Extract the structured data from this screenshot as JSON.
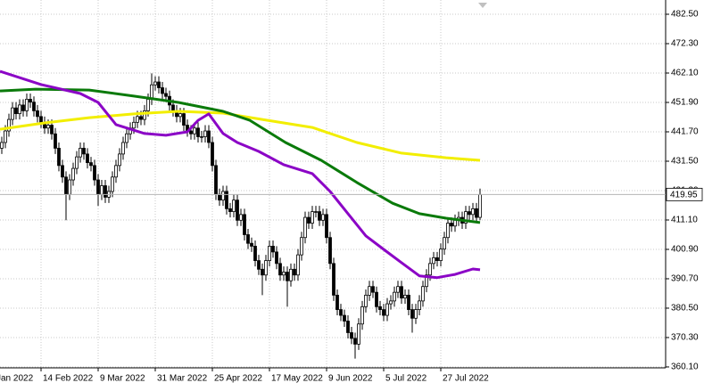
{
  "chart_data": {
    "type": "candlestick",
    "up_color": "#ffffff",
    "down_color": "#000000",
    "outline_color": "#000000",
    "open": [
      436,
      438,
      442,
      446,
      450,
      448,
      451,
      449,
      453,
      452,
      449,
      447,
      445,
      443,
      444,
      441,
      436,
      430,
      426,
      420,
      425,
      429,
      433,
      436,
      434,
      431,
      430,
      425,
      420,
      423,
      419,
      421,
      426,
      430,
      434,
      438,
      441,
      443,
      445,
      447,
      446,
      449,
      453,
      458,
      459,
      457,
      455,
      454,
      451,
      449,
      447,
      448,
      444,
      442,
      441,
      443,
      440,
      440,
      442,
      438,
      430,
      420,
      418,
      421,
      415,
      414,
      418,
      411,
      413,
      406,
      403,
      402,
      397,
      394,
      392,
      397,
      402,
      400,
      396,
      392,
      393,
      390,
      394,
      392,
      399,
      405,
      412,
      410,
      414,
      414,
      411,
      413,
      405,
      396,
      385,
      380,
      378,
      376,
      372,
      370,
      368,
      375,
      381,
      385,
      388,
      386,
      381,
      380,
      378,
      382,
      383,
      386,
      388,
      384,
      385,
      380,
      377,
      380,
      383,
      388,
      392,
      396,
      398,
      397,
      401,
      405,
      410,
      409,
      411,
      412,
      410,
      414,
      413,
      415,
      412
    ],
    "high": [
      440,
      444,
      448,
      452,
      452,
      453,
      453,
      455,
      455,
      454,
      451,
      449,
      447,
      446,
      446,
      443,
      438,
      432,
      428,
      427,
      431,
      435,
      438,
      438,
      436,
      433,
      432,
      427,
      425,
      425,
      423,
      428,
      432,
      436,
      440,
      443,
      445,
      447,
      449,
      449,
      451,
      455,
      462,
      461,
      461,
      459,
      457,
      456,
      453,
      451,
      450,
      450,
      446,
      444,
      445,
      445,
      442,
      444,
      444,
      440,
      432,
      422,
      423,
      423,
      417,
      420,
      420,
      415,
      415,
      408,
      405,
      404,
      399,
      396,
      399,
      404,
      404,
      402,
      398,
      395,
      395,
      396,
      396,
      401,
      407,
      414,
      414,
      416,
      416,
      416,
      415,
      415,
      407,
      398,
      387,
      382,
      380,
      378,
      374,
      372,
      377,
      383,
      387,
      390,
      390,
      388,
      383,
      382,
      384,
      385,
      388,
      390,
      390,
      387,
      387,
      382,
      382,
      385,
      390,
      394,
      398,
      400,
      400,
      403,
      407,
      412,
      412,
      413,
      414,
      414,
      416,
      416,
      417,
      417,
      422
    ],
    "low": [
      434,
      436,
      440,
      444,
      446,
      446,
      447,
      447,
      450,
      447,
      445,
      443,
      441,
      441,
      439,
      434,
      428,
      424,
      411,
      418,
      423,
      427,
      431,
      432,
      429,
      428,
      423,
      416,
      418,
      417,
      417,
      419,
      424,
      428,
      432,
      436,
      439,
      441,
      443,
      444,
      444,
      447,
      451,
      456,
      455,
      453,
      452,
      449,
      447,
      445,
      445,
      442,
      440,
      439,
      439,
      438,
      438,
      438,
      436,
      428,
      418,
      416,
      416,
      413,
      412,
      412,
      409,
      409,
      404,
      401,
      400,
      395,
      392,
      385,
      390,
      395,
      398,
      394,
      390,
      390,
      381,
      388,
      390,
      390,
      397,
      403,
      408,
      408,
      412,
      409,
      409,
      403,
      394,
      383,
      378,
      376,
      374,
      370,
      368,
      363,
      366,
      373,
      379,
      383,
      384,
      379,
      378,
      376,
      376,
      380,
      381,
      384,
      382,
      382,
      378,
      372,
      375,
      378,
      381,
      386,
      390,
      394,
      395,
      395,
      399,
      403,
      407,
      407,
      409,
      408,
      408,
      411,
      411,
      410,
      411
    ],
    "close": [
      438,
      442,
      446,
      450,
      448,
      451,
      449,
      453,
      452,
      449,
      447,
      445,
      443,
      444,
      441,
      436,
      430,
      426,
      420,
      425,
      429,
      433,
      436,
      434,
      431,
      430,
      425,
      420,
      423,
      419,
      421,
      426,
      430,
      434,
      438,
      441,
      443,
      445,
      447,
      446,
      449,
      453,
      458,
      459,
      457,
      455,
      454,
      451,
      449,
      447,
      448,
      444,
      442,
      441,
      443,
      440,
      440,
      442,
      438,
      430,
      420,
      418,
      421,
      415,
      414,
      418,
      411,
      413,
      406,
      403,
      402,
      397,
      394,
      392,
      397,
      402,
      400,
      396,
      392,
      393,
      390,
      394,
      392,
      399,
      405,
      412,
      410,
      414,
      414,
      411,
      413,
      405,
      396,
      385,
      380,
      378,
      376,
      372,
      370,
      368,
      375,
      381,
      385,
      388,
      386,
      381,
      380,
      378,
      382,
      383,
      386,
      388,
      384,
      385,
      380,
      377,
      380,
      383,
      388,
      392,
      396,
      398,
      397,
      401,
      405,
      410,
      409,
      411,
      412,
      410,
      414,
      413,
      415,
      412,
      419.95
    ],
    "lines": [
      {
        "color": "#f2ee00",
        "x": [
          -0.5,
          12,
          24.5,
          37,
          49.5,
          62,
          74.5,
          87,
          99.5,
          112,
          124.5,
          134
        ],
        "values": [
          442.6,
          444.8,
          446.6,
          447.9,
          448.8,
          448.2,
          445.7,
          443.2,
          438,
          434.3,
          432.7,
          431.8
        ]
      },
      {
        "color": "#0a7a0a",
        "x": [
          -0.5,
          9.5,
          24.5,
          37,
          49.5,
          62,
          69.5,
          79.5,
          89.5,
          99.5,
          109.5,
          117,
          124.5,
          134
        ],
        "values": [
          455.9,
          456.5,
          456.2,
          454.1,
          451.9,
          448.8,
          445.7,
          438,
          431.8,
          424.1,
          416.9,
          413.3,
          411.7,
          410.2
        ]
      },
      {
        "color": "#8b05c6",
        "x": [
          -0.5,
          11,
          22,
          27,
          32,
          40,
          46,
          52,
          55,
          58,
          62,
          66,
          72,
          79,
          87,
          92,
          97,
          102,
          107,
          112,
          117,
          122,
          127,
          132,
          134
        ],
        "values": [
          462.7,
          458.1,
          455,
          451.9,
          444.2,
          441.1,
          440.5,
          441.7,
          445.7,
          447.9,
          441.1,
          438,
          434.9,
          430.3,
          427.2,
          421,
          413.3,
          405.6,
          400.9,
          396.3,
          391.7,
          391.1,
          392.2,
          394.1,
          393.8
        ]
      }
    ],
    "xlim": [
      -0.5,
      186
    ],
    "ylim": [
      359.78,
      487.45
    ],
    "xticks": [
      {
        "value": -2,
        "label": "Jan 2022"
      },
      {
        "value": 11,
        "label": "14 Feb 2022"
      },
      {
        "value": 27,
        "label": "9 Mar 2022"
      },
      {
        "value": 43,
        "label": "31 Mar 2022"
      },
      {
        "value": 59,
        "label": "25 Apr 2022"
      },
      {
        "value": 75,
        "label": "17 May 2022"
      },
      {
        "value": 91,
        "label": "9 Jun 2022"
      },
      {
        "value": 107,
        "label": "5 Jul 2022"
      },
      {
        "value": 123,
        "label": "27 Jul 2022"
      }
    ],
    "yticks": [
      {
        "value": 482.5,
        "label": "482.50"
      },
      {
        "value": 472.3,
        "label": "472.30"
      },
      {
        "value": 462.1,
        "label": "462.10"
      },
      {
        "value": 451.9,
        "label": "451.90"
      },
      {
        "value": 441.7,
        "label": "441.70"
      },
      {
        "value": 431.5,
        "label": "431.50"
      },
      {
        "value": 421.3,
        "label": "421.30"
      },
      {
        "value": 411.1,
        "label": "411.10"
      },
      {
        "value": 400.9,
        "label": "400.90"
      },
      {
        "value": 390.7,
        "label": "390.70"
      },
      {
        "value": 380.5,
        "label": "380.50"
      },
      {
        "value": 370.3,
        "label": "370.30"
      },
      {
        "value": 360.1,
        "label": "360.10"
      }
    ],
    "grid": true
  }
}
